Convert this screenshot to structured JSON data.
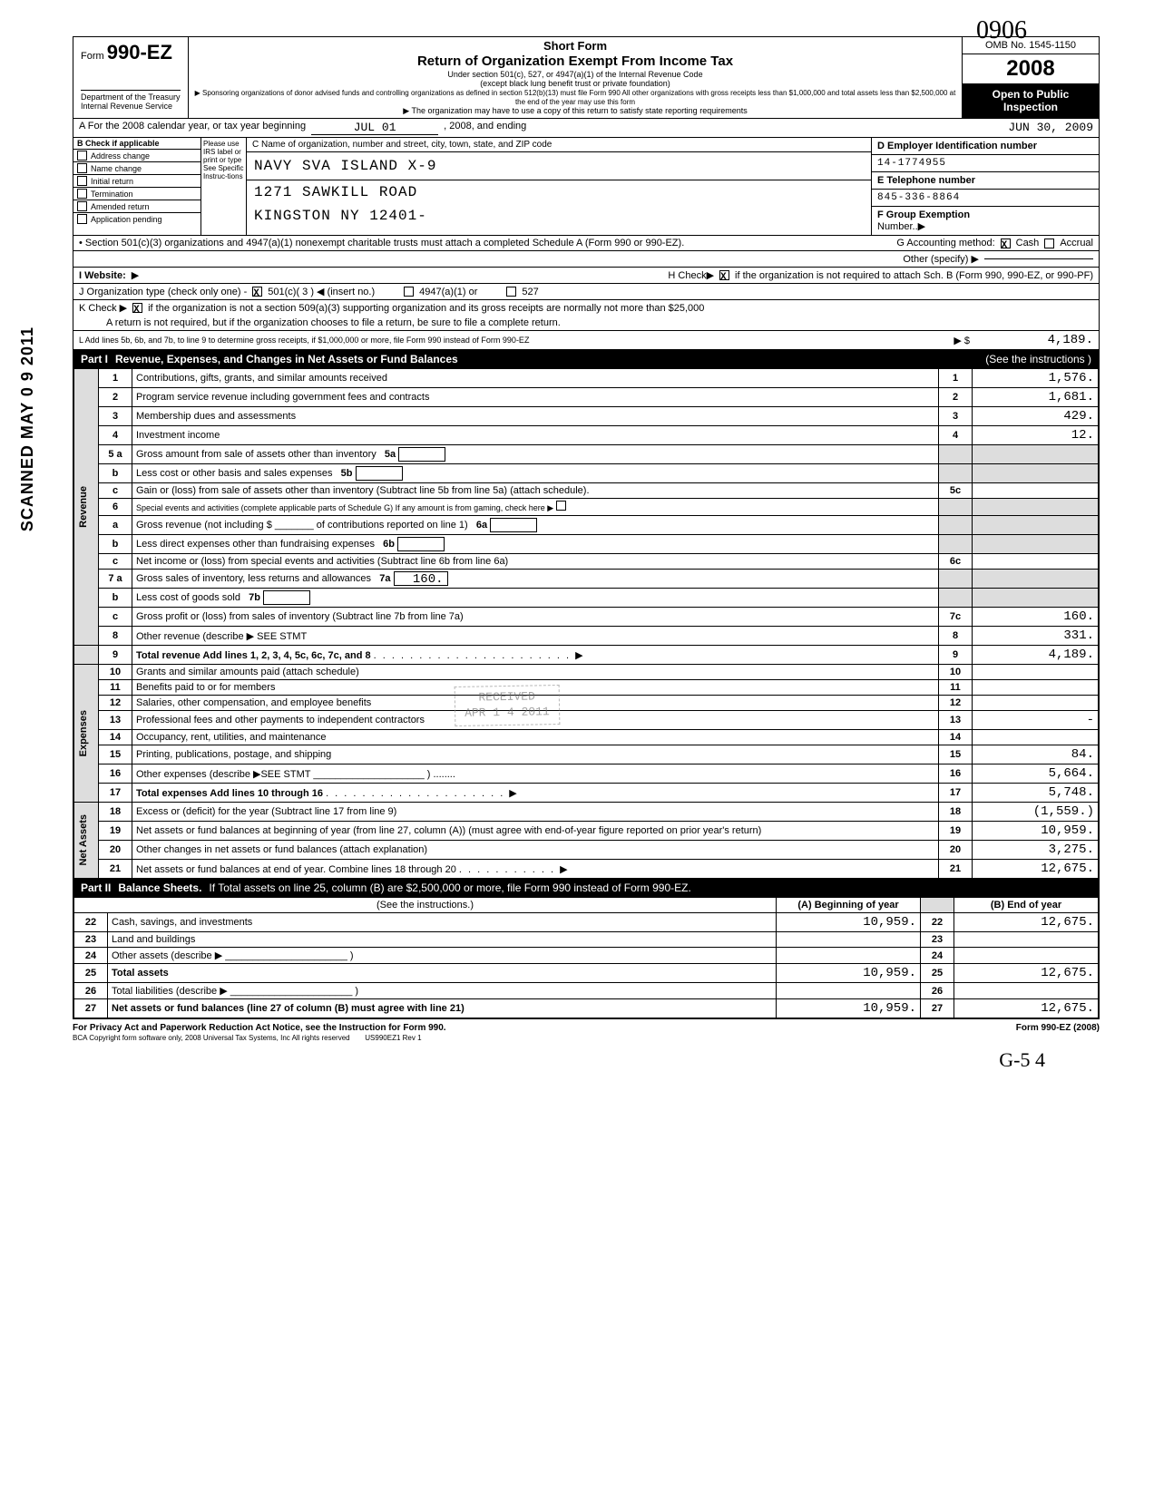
{
  "form": {
    "form_label": "Form",
    "number": "990-EZ",
    "short_form": "Short Form",
    "title": "Return of Organization Exempt From Income Tax",
    "subtitle1": "Under section 501(c), 527, or 4947(a)(1) of the Internal Revenue Code",
    "subtitle2": "(except black lung benefit trust or private foundation)",
    "subtitle3": "▶ Sponsoring organizations of donor advised funds and controlling organizations as defined in section 512(b)(13) must file Form 990  All other organizations with gross receipts less than $1,000,000 and total assets less than $2,500,000 at the end of the year may use this form",
    "subtitle4": "▶ The organization may have to use a copy of this return to satisfy state reporting requirements",
    "dept": "Department of the Treasury",
    "irs": "Internal Revenue Service",
    "omb": "OMB No. 1545-1150",
    "year": "2008",
    "open": "Open to Public Inspection"
  },
  "period": {
    "label_a": "A  For the 2008 calendar year, or tax year beginning",
    "begin": "JUL 01",
    "mid": ", 2008, and ending",
    "end": "JUN 30, 2009"
  },
  "section_b": {
    "header": "B  Check if applicable",
    "please": "Please use IRS label or print or type See Specific Instruc-tions",
    "checks": [
      "Address change",
      "Name change",
      "Initial return",
      "Termination",
      "Amended return",
      "Application pending"
    ],
    "c_label": "C Name of organization, number and street, city, town, state, and ZIP code",
    "org_name": "NAVY SVA ISLAND X-9",
    "addr1": "1271 SAWKILL ROAD",
    "addr2": "KINGSTON NY 12401-",
    "d_label": "D Employer Identification number",
    "ein": "14-1774955",
    "e_label": "E Telephone number",
    "phone": "845-336-8864",
    "f_label": "F Group Exemption",
    "f_sub": "Number..▶"
  },
  "bullets": {
    "sec501": "•   Section 501(c)(3) organizations and 4947(a)(1) nonexempt charitable trusts must attach a completed Schedule A (Form 990 or 990-EZ).",
    "g_label": "G Accounting method:",
    "g_cash": "Cash",
    "g_accrual": "Accrual",
    "g_other": "Other (specify)  ▶"
  },
  "website": {
    "label": "I  Website:",
    "arrow": "▶",
    "h_label": "H  Check▶",
    "h_text": " if the organization is not required to attach Sch. B   (Form 990, 990-EZ, or 990-PF)"
  },
  "line_j": {
    "label": "J  Organization type (check only one) -",
    "c501": "501(c)( 3  ) ◀ (insert no.)",
    "a4947": "4947(a)(1) or",
    "s527": "527"
  },
  "line_k": {
    "label": "K Check  ▶",
    "text": "if the organization is not a section 509(a)(3) supporting organization and its gross receipts are normally not more than $25,000",
    "text2": "A return is not required, but if the organization chooses to file a return, be sure to file a complete return."
  },
  "line_l": {
    "label": "L   Add lines 5b, 6b, and 7b, to line 9 to determine gross receipts, if $1,000,000 or more, file Form 990 instead of Form 990-EZ",
    "arrow": "▶ $",
    "amount": "4,189."
  },
  "part1": {
    "label": "Part I",
    "title": "Revenue, Expenses, and Changes in Net Assets or Fund Balances",
    "note": "(See the instructions )"
  },
  "lines": {
    "l1": {
      "n": "1",
      "d": "Contributions, gifts, grants, and similar amounts received",
      "a": "1,576."
    },
    "l2": {
      "n": "2",
      "d": "Program service revenue including government fees and contracts",
      "a": "1,681."
    },
    "l3": {
      "n": "3",
      "d": "Membership dues and assessments",
      "a": "429."
    },
    "l4": {
      "n": "4",
      "d": "Investment income",
      "a": "12."
    },
    "l5a": {
      "n": "5 a",
      "d": "Gross amount from sale of assets other than inventory",
      "box": "5a"
    },
    "l5b": {
      "n": "b",
      "d": "Less cost or other basis and sales expenses",
      "box": "5b"
    },
    "l5c": {
      "n": "c",
      "d": "Gain or (loss) from sale of assets other than inventory (Subtract line 5b from line 5a) (attach schedule).",
      "box": "5c"
    },
    "l6": {
      "n": "6",
      "d": "Special events and activities (complete applicable parts of Schedule G) If any amount is from gaming, check here",
      "arrow": "▶"
    },
    "l6a": {
      "n": "a",
      "d": "Gross revenue (not including $ _______ of contributions reported on line 1)",
      "box": "6a"
    },
    "l6b": {
      "n": "b",
      "d": "Less  direct expenses other than fundraising expenses",
      "box": "6b"
    },
    "l6c": {
      "n": "c",
      "d": "Net income or (loss) from special events and activities (Subtract line 6b from line 6a)",
      "box": "6c"
    },
    "l7a": {
      "n": "7 a",
      "d": "Gross sales of inventory, less returns and allowances",
      "box": "7a",
      "a": "160."
    },
    "l7b": {
      "n": "b",
      "d": "Less  cost of goods sold",
      "box": "7b"
    },
    "l7c": {
      "n": "c",
      "d": "Gross profit or (loss) from sales of inventory (Subtract line 7b from line 7a)",
      "box": "7c",
      "a": "160."
    },
    "l8": {
      "n": "8",
      "d": "Other revenue (describe ▶ SEE STMT",
      "a": "331."
    },
    "l9": {
      "n": "9",
      "d": "Total revenue Add lines 1, 2, 3, 4, 5c, 6c, 7c, and 8",
      "a": "4,189."
    },
    "l10": {
      "n": "10",
      "d": "Grants and similar amounts paid (attach schedule)"
    },
    "l11": {
      "n": "11",
      "d": "Benefits paid to or for members"
    },
    "l12": {
      "n": "12",
      "d": "Salaries, other compensation, and employee benefits"
    },
    "l13": {
      "n": "13",
      "d": "Professional fees and other payments to independent contractors",
      "a": "-"
    },
    "l14": {
      "n": "14",
      "d": "Occupancy, rent, utilities, and maintenance"
    },
    "l15": {
      "n": "15",
      "d": "Printing, publications, postage, and shipping",
      "a": "84."
    },
    "l16": {
      "n": "16",
      "d": "Other expenses (describe ▶SEE STMT",
      "a": "5,664."
    },
    "l17": {
      "n": "17",
      "d": "Total expenses Add lines 10 through 16",
      "a": "5,748."
    },
    "l18": {
      "n": "18",
      "d": "Excess or (deficit) for the year (Subtract line 17 from line 9)",
      "a": "(1,559.)"
    },
    "l19": {
      "n": "19",
      "d": "Net assets or fund balances at beginning of year (from line 27, column (A)) (must agree with end-of-year figure reported on prior year's return)",
      "a": "10,959."
    },
    "l20": {
      "n": "20",
      "d": "Other changes in net assets or fund balances (attach explanation)",
      "a": "3,275."
    },
    "l21": {
      "n": "21",
      "d": "Net assets or fund balances at end of year. Combine lines 18 through 20",
      "a": "12,675."
    }
  },
  "side_labels": {
    "revenue": "Revenue",
    "expenses": "Expenses",
    "netassets": "Net Assets"
  },
  "part2": {
    "label": "Part II",
    "title": "Balance Sheets.",
    "note": "If Total assets on line 25, column (B) are $2,500,000 or more, file Form 990 instead of Form 990-EZ.",
    "see": "(See the instructions.)",
    "colA": "(A) Beginning of year",
    "colB": "(B) End of year"
  },
  "bs": {
    "l22": {
      "n": "22",
      "d": "Cash, savings, and investments",
      "a": "10,959.",
      "b": "12,675."
    },
    "l23": {
      "n": "23",
      "d": "Land and buildings"
    },
    "l24": {
      "n": "24",
      "d": "Other assets (describe  ▶"
    },
    "l25": {
      "n": "25",
      "d": "Total assets",
      "a": "10,959.",
      "b": "12,675."
    },
    "l26": {
      "n": "26",
      "d": "Total liabilities (describe ▶"
    },
    "l27": {
      "n": "27",
      "d": "Net assets or fund balances (line 27 of column (B) must agree with line 21)",
      "a": "10,959.",
      "b": "12,675."
    }
  },
  "footer": {
    "privacy": "For Privacy Act and Paperwork Reduction Act Notice, see the Instruction for Form 990.",
    "bca": "BCA  Copyright form software only, 2008 Universal Tax Systems, Inc   All rights reserved",
    "code": "US990EZ1     Rev 1",
    "formref": "Form 990-EZ  (2008)"
  },
  "stamps": {
    "scanned": "SCANNED MAY 0 9 2011",
    "handwritten_top": "0906",
    "received": "RECEIVED\nAPR 1 4 2011",
    "hw_bottom": "G-5      4"
  }
}
